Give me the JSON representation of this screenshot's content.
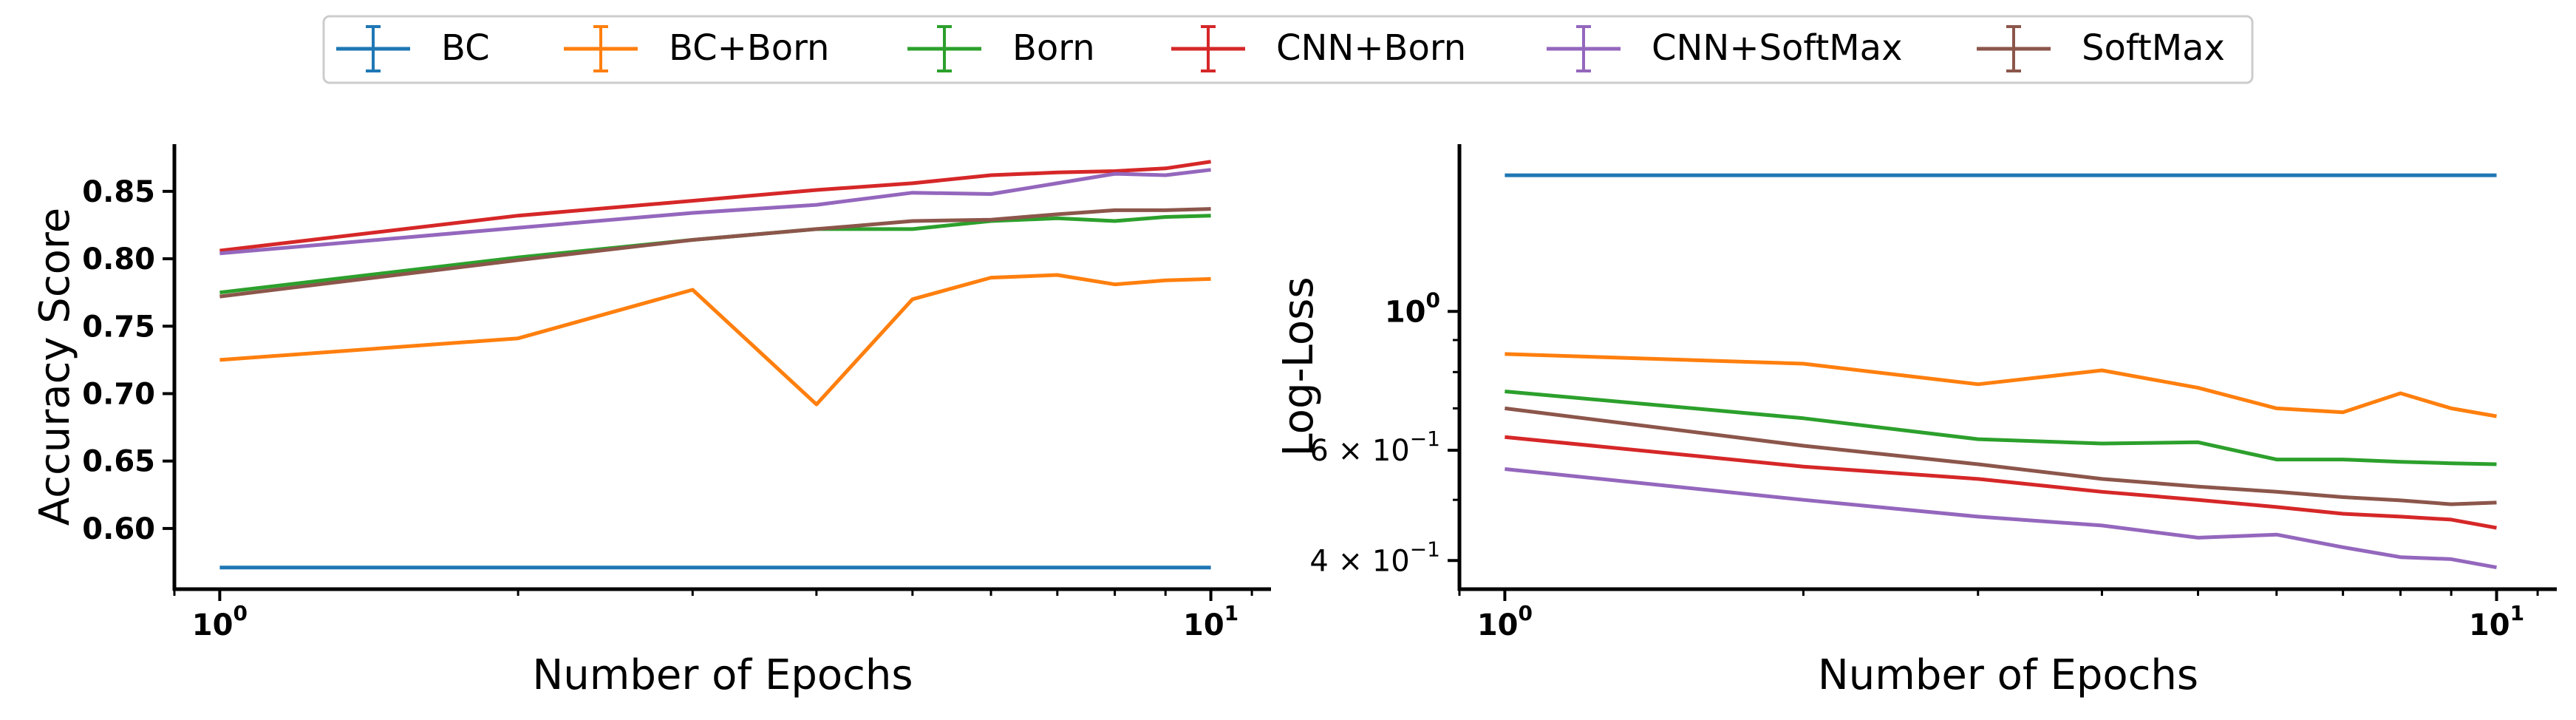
{
  "legend": {
    "entries": [
      {
        "label": "BC",
        "color": "#1f77b4"
      },
      {
        "label": "BC+Born",
        "color": "#ff7f0e"
      },
      {
        "label": "Born",
        "color": "#2ca02c"
      },
      {
        "label": "CNN+Born",
        "color": "#d62728"
      },
      {
        "label": "CNN+SoftMax",
        "color": "#9467bd"
      },
      {
        "label": "SoftMax",
        "color": "#8c564b"
      }
    ]
  },
  "chart_data": [
    {
      "type": "line",
      "xlabel": "Number of Epochs",
      "ylabel": "Accuracy Score",
      "xscale": "log",
      "xlim": [
        0.9,
        11.5
      ],
      "ylim": [
        0.555,
        0.885
      ],
      "x_ticks": [
        {
          "value": 1,
          "base": "10",
          "exp": "0"
        },
        {
          "value": 10,
          "base": "10",
          "exp": "1"
        }
      ],
      "y_ticks": [
        {
          "value": 0.6,
          "label": "0.60"
        },
        {
          "value": 0.65,
          "label": "0.65"
        },
        {
          "value": 0.7,
          "label": "0.70"
        },
        {
          "value": 0.75,
          "label": "0.75"
        },
        {
          "value": 0.8,
          "label": "0.80"
        },
        {
          "value": 0.85,
          "label": "0.85"
        }
      ],
      "x": [
        1,
        2,
        3,
        4,
        5,
        6,
        7,
        8,
        9,
        10
      ],
      "series": [
        {
          "name": "BC",
          "color": "#1f77b4",
          "values": [
            0.571,
            0.571,
            0.571,
            0.571,
            0.571,
            0.571,
            0.571,
            0.571,
            0.571,
            0.571
          ]
        },
        {
          "name": "BC+Born",
          "color": "#ff7f0e",
          "values": [
            0.725,
            0.741,
            0.777,
            0.692,
            0.77,
            0.786,
            0.788,
            0.781,
            0.784,
            0.785
          ]
        },
        {
          "name": "Born",
          "color": "#2ca02c",
          "values": [
            0.775,
            0.801,
            0.814,
            0.822,
            0.822,
            0.828,
            0.83,
            0.828,
            0.831,
            0.832
          ]
        },
        {
          "name": "CNN+Born",
          "color": "#d62728",
          "values": [
            0.806,
            0.832,
            0.843,
            0.851,
            0.856,
            0.862,
            0.864,
            0.865,
            0.867,
            0.872
          ]
        },
        {
          "name": "CNN+SoftMax",
          "color": "#9467bd",
          "values": [
            0.804,
            0.823,
            0.834,
            0.84,
            0.849,
            0.848,
            0.856,
            0.863,
            0.862,
            0.866
          ]
        },
        {
          "name": "SoftMax",
          "color": "#8c564b",
          "values": [
            0.772,
            0.799,
            0.814,
            0.822,
            0.828,
            0.829,
            0.833,
            0.836,
            0.836,
            0.837
          ]
        }
      ]
    },
    {
      "type": "line",
      "xlabel": "Number of Epochs",
      "ylabel": "Log-Loss",
      "xscale": "log",
      "yscale": "log",
      "xlim": [
        0.9,
        11.5
      ],
      "ylim": [
        0.36,
        1.85
      ],
      "x_ticks": [
        {
          "value": 1,
          "base": "10",
          "exp": "0"
        },
        {
          "value": 10,
          "base": "10",
          "exp": "1"
        }
      ],
      "y_ticks": [
        {
          "value": 0.4,
          "mant": "4 × 10",
          "exp": "−1",
          "bold": false
        },
        {
          "value": 0.6,
          "mant": "6 × 10",
          "exp": "−1",
          "bold": false
        },
        {
          "value": 1.0,
          "mant": "10",
          "exp": "0",
          "bold": true
        }
      ],
      "y_minor_ticks": [
        0.5,
        0.7,
        0.8,
        0.9
      ],
      "x": [
        1,
        2,
        3,
        4,
        5,
        6,
        7,
        8,
        9,
        10
      ],
      "series": [
        {
          "name": "BC",
          "color": "#1f77b4",
          "values": [
            1.65,
            1.65,
            1.65,
            1.65,
            1.65,
            1.65,
            1.65,
            1.65,
            1.65,
            1.65
          ]
        },
        {
          "name": "BC+Born",
          "color": "#ff7f0e",
          "values": [
            0.855,
            0.825,
            0.765,
            0.805,
            0.755,
            0.7,
            0.69,
            0.74,
            0.7,
            0.68
          ]
        },
        {
          "name": "Born",
          "color": "#2ca02c",
          "values": [
            0.745,
            0.675,
            0.625,
            0.615,
            0.618,
            0.58,
            0.58,
            0.575,
            0.572,
            0.57
          ]
        },
        {
          "name": "CNN+Born",
          "color": "#d62728",
          "values": [
            0.63,
            0.565,
            0.54,
            0.515,
            0.5,
            0.487,
            0.475,
            0.47,
            0.465,
            0.451
          ]
        },
        {
          "name": "CNN+SoftMax",
          "color": "#9467bd",
          "values": [
            0.56,
            0.5,
            0.47,
            0.455,
            0.435,
            0.44,
            0.42,
            0.405,
            0.402,
            0.39
          ]
        },
        {
          "name": "SoftMax",
          "color": "#8c564b",
          "values": [
            0.7,
            0.61,
            0.57,
            0.54,
            0.525,
            0.515,
            0.505,
            0.499,
            0.492,
            0.495
          ]
        }
      ]
    }
  ]
}
